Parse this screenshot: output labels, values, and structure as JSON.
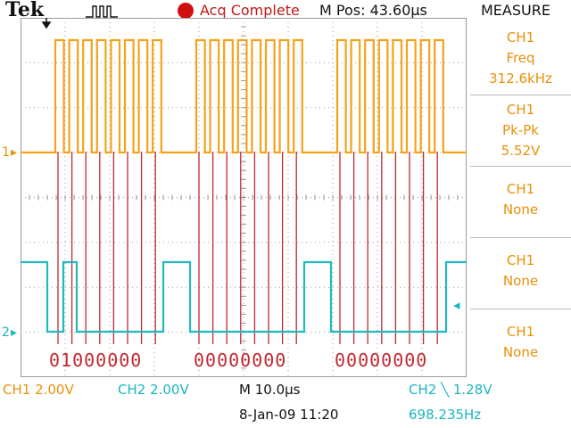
{
  "header": {
    "brand": "Tek",
    "trigger_icon": "trigger-pulse-icon",
    "acq_status": "Acq Complete",
    "acq_status_color": "#d01010",
    "horizontal_position": "M Pos: 43.60µs"
  },
  "measure": {
    "title": "MEASURE",
    "slots": [
      {
        "source": "CH1",
        "type": "Freq",
        "value": "312.6kHz"
      },
      {
        "source": "CH1",
        "type": "Pk-Pk",
        "value": "5.52V"
      },
      {
        "source": "CH1",
        "type": "None",
        "value": ""
      },
      {
        "source": "CH1",
        "type": "None",
        "value": ""
      },
      {
        "source": "CH1",
        "type": "None",
        "value": ""
      }
    ]
  },
  "waveforms": {
    "ch1_color": "#f5a21b",
    "ch2_color": "#1fb9bf",
    "marker_color": "#c0282f",
    "grid_color": "#9a9a9a",
    "ch1_marker": "1",
    "ch2_marker": "2",
    "decoded_bytes": [
      "01000000",
      "00000000",
      "00000000"
    ]
  },
  "footer": {
    "ch1_scale": "CH1  2.00V",
    "ch2_scale": "CH2  2.00V",
    "timebase": "M 10.0µs",
    "trigger": "CH2 ╲ 1.28V",
    "datetime": "8-Jan-09 11:20",
    "trigger_freq": "698.235Hz"
  }
}
